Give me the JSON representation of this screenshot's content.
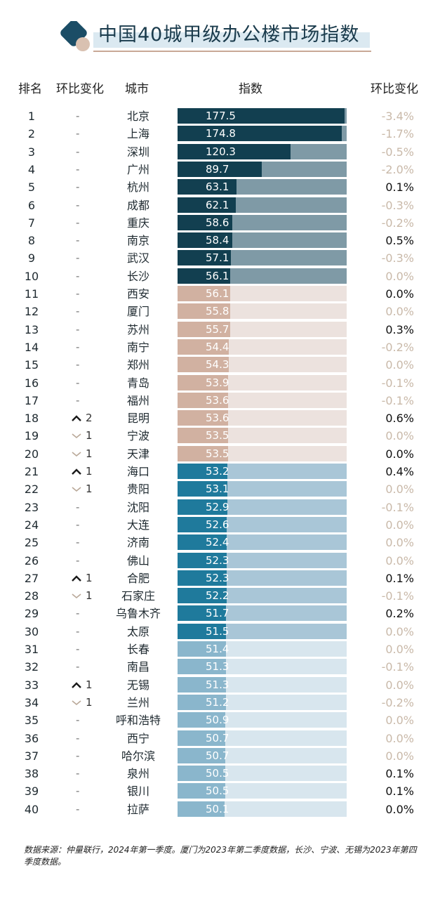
{
  "title": "中国40城甲级办公楼市场指数",
  "headers": {
    "rank": "排名",
    "rank_change": "环比变化",
    "city": "城市",
    "index": "指数",
    "index_change": "环比变化"
  },
  "colors": {
    "top": "#123f50",
    "top_bg": "#7f9aa6",
    "mid": "#d1b1a1",
    "mid_bg": "#ece2de",
    "low": "#1f7a9c",
    "low_bg": "#a9c6d7",
    "tail": "#8ab6cc",
    "tail_bg": "#d8e6ee",
    "pct_up": "#111111",
    "pct_flat": "#c9b9a9",
    "accent": "#c9a896"
  },
  "chart_data": {
    "type": "bar",
    "xlim": [
      0,
      180
    ],
    "categories": [
      "北京",
      "上海",
      "深圳",
      "广州",
      "杭州",
      "成都",
      "重庆",
      "南京",
      "武汉",
      "长沙",
      "西安",
      "厦门",
      "苏州",
      "南宁",
      "郑州",
      "青岛",
      "福州",
      "昆明",
      "宁波",
      "天津",
      "海口",
      "贵阳",
      "沈阳",
      "大连",
      "济南",
      "佛山",
      "合肥",
      "石家庄",
      "乌鲁木齐",
      "太原",
      "长春",
      "南昌",
      "无锡",
      "兰州",
      "呼和浩特",
      "西宁",
      "哈尔滨",
      "泉州",
      "银川",
      "拉萨"
    ],
    "values": [
      177.5,
      174.8,
      120.3,
      89.7,
      63.1,
      62.1,
      58.6,
      58.4,
      57.1,
      56.1,
      56.1,
      55.8,
      55.7,
      54.4,
      54.3,
      53.9,
      53.6,
      53.6,
      53.5,
      53.5,
      53.2,
      53.1,
      52.9,
      52.6,
      52.4,
      52.3,
      52.3,
      52.2,
      51.7,
      51.5,
      51.4,
      51.3,
      51.3,
      51.2,
      50.9,
      50.7,
      50.7,
      50.5,
      50.5,
      50.1
    ],
    "value_labels": [
      "177.5",
      "174.8",
      "120.3",
      "89.7",
      "63.1",
      "62.1",
      "58.6",
      "58.4",
      "57.1",
      "56.1",
      "56.1",
      "55.8",
      "55.7",
      "54.4",
      "54.3",
      "53.9",
      "53.6",
      "53.6",
      "53.5",
      "53.5",
      "53.2",
      "53.1",
      "52.9",
      "52.6",
      "52.4",
      "52.3",
      "52.3",
      "52.2",
      "51.7",
      "51.5",
      "51.4",
      "51.3",
      "51.3",
      "51.2",
      "50.9",
      "50.7",
      "50.7",
      "50.5",
      "50.5",
      "50.1"
    ],
    "ranks": [
      "1",
      "2",
      "3",
      "4",
      "5",
      "6",
      "7",
      "8",
      "9",
      "10",
      "11",
      "12",
      "13",
      "14",
      "15",
      "16",
      "17",
      "18",
      "19",
      "20",
      "21",
      "22",
      "23",
      "24",
      "25",
      "26",
      "27",
      "28",
      "29",
      "30",
      "31",
      "32",
      "33",
      "34",
      "35",
      "36",
      "37",
      "38",
      "39",
      "40"
    ],
    "rank_change": [
      {
        "dir": "-",
        "n": ""
      },
      {
        "dir": "-",
        "n": ""
      },
      {
        "dir": "-",
        "n": ""
      },
      {
        "dir": "-",
        "n": ""
      },
      {
        "dir": "-",
        "n": ""
      },
      {
        "dir": "-",
        "n": ""
      },
      {
        "dir": "-",
        "n": ""
      },
      {
        "dir": "-",
        "n": ""
      },
      {
        "dir": "-",
        "n": ""
      },
      {
        "dir": "-",
        "n": ""
      },
      {
        "dir": "-",
        "n": ""
      },
      {
        "dir": "-",
        "n": ""
      },
      {
        "dir": "-",
        "n": ""
      },
      {
        "dir": "-",
        "n": ""
      },
      {
        "dir": "-",
        "n": ""
      },
      {
        "dir": "-",
        "n": ""
      },
      {
        "dir": "-",
        "n": ""
      },
      {
        "dir": "up",
        "n": "2"
      },
      {
        "dir": "down",
        "n": "1"
      },
      {
        "dir": "down",
        "n": "1"
      },
      {
        "dir": "up",
        "n": "1"
      },
      {
        "dir": "down",
        "n": "1"
      },
      {
        "dir": "-",
        "n": ""
      },
      {
        "dir": "-",
        "n": ""
      },
      {
        "dir": "-",
        "n": ""
      },
      {
        "dir": "-",
        "n": ""
      },
      {
        "dir": "up",
        "n": "1"
      },
      {
        "dir": "down",
        "n": "1"
      },
      {
        "dir": "-",
        "n": ""
      },
      {
        "dir": "-",
        "n": ""
      },
      {
        "dir": "-",
        "n": ""
      },
      {
        "dir": "-",
        "n": ""
      },
      {
        "dir": "up",
        "n": "1"
      },
      {
        "dir": "down",
        "n": "1"
      },
      {
        "dir": "-",
        "n": ""
      },
      {
        "dir": "-",
        "n": ""
      },
      {
        "dir": "-",
        "n": ""
      },
      {
        "dir": "-",
        "n": ""
      },
      {
        "dir": "-",
        "n": ""
      },
      {
        "dir": "-",
        "n": ""
      }
    ],
    "index_change": [
      "-3.4%",
      "-1.7%",
      "-0.5%",
      "-2.0%",
      "0.1%",
      "-0.3%",
      "-0.2%",
      "0.5%",
      "-0.3%",
      "0.0%",
      "0.0%",
      "0.0%",
      "0.3%",
      "-0.2%",
      "0.0%",
      "-0.1%",
      "-0.1%",
      "0.6%",
      "0.0%",
      "0.0%",
      "0.4%",
      "0.0%",
      "-0.1%",
      "0.0%",
      "0.0%",
      "0.0%",
      "0.1%",
      "-0.1%",
      "0.2%",
      "0.0%",
      "0.0%",
      "-0.1%",
      "0.0%",
      "-0.2%",
      "0.0%",
      "0.0%",
      "0.0%",
      "0.1%",
      "0.1%",
      "0.0%"
    ],
    "index_change_dark": [
      false,
      false,
      false,
      false,
      true,
      false,
      false,
      true,
      false,
      false,
      true,
      false,
      true,
      false,
      false,
      false,
      false,
      true,
      false,
      true,
      true,
      false,
      false,
      false,
      false,
      false,
      true,
      false,
      true,
      false,
      false,
      false,
      false,
      false,
      false,
      false,
      false,
      true,
      true,
      true
    ]
  },
  "footer": "数据来源：仲量联行，2024年第一季度。厦门为2023年第二季度数据，长沙、宁波、无锡为2023年第四季度数据。"
}
